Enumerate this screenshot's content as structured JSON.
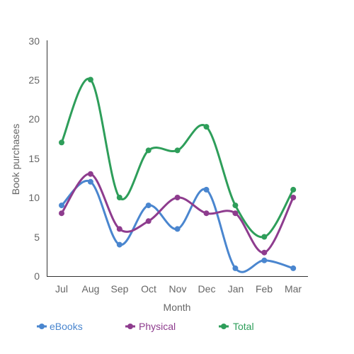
{
  "chart_data": {
    "type": "line",
    "categories": [
      "Jul",
      "Aug",
      "Sep",
      "Oct",
      "Nov",
      "Dec",
      "Jan",
      "Feb",
      "Mar"
    ],
    "xlabel": "Month",
    "ylabel": "Book purchases",
    "ylim": [
      0,
      30
    ],
    "yticks": [
      "0",
      "5",
      "10",
      "15",
      "20",
      "25",
      "30"
    ],
    "grid": false,
    "legend": "bottom-left",
    "series": [
      {
        "name": "eBooks",
        "color": "#4a86cf",
        "values": [
          9,
          12,
          4,
          9,
          6,
          11,
          1,
          2,
          1
        ]
      },
      {
        "name": "Physical",
        "color": "#8e3c8e",
        "values": [
          8,
          13,
          6,
          7,
          10,
          8,
          8,
          3,
          10
        ]
      },
      {
        "name": "Total",
        "color": "#2e9e5a",
        "values": [
          17,
          25,
          10,
          16,
          16,
          19,
          9,
          5,
          11
        ]
      }
    ]
  }
}
